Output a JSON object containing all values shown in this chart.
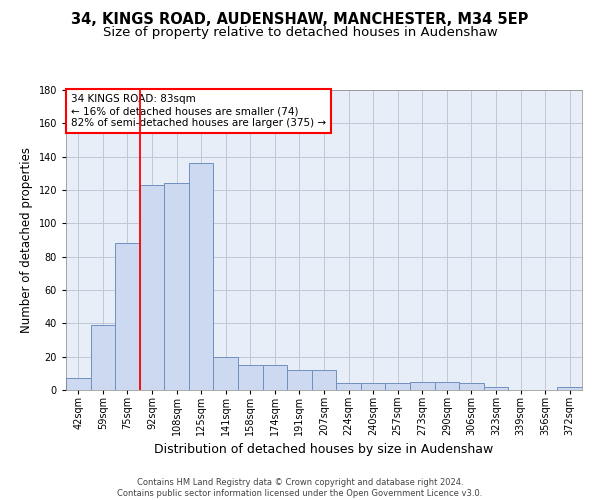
{
  "title": "34, KINGS ROAD, AUDENSHAW, MANCHESTER, M34 5EP",
  "subtitle": "Size of property relative to detached houses in Audenshaw",
  "xlabel": "Distribution of detached houses by size in Audenshaw",
  "ylabel": "Number of detached properties",
  "bar_values": [
    7,
    39,
    88,
    123,
    124,
    136,
    20,
    15,
    15,
    12,
    12,
    4,
    4,
    4,
    5,
    5,
    4,
    2,
    0,
    0,
    2
  ],
  "bar_labels": [
    "42sqm",
    "59sqm",
    "75sqm",
    "92sqm",
    "108sqm",
    "125sqm",
    "141sqm",
    "158sqm",
    "174sqm",
    "191sqm",
    "207sqm",
    "224sqm",
    "240sqm",
    "257sqm",
    "273sqm",
    "290sqm",
    "306sqm",
    "323sqm",
    "339sqm",
    "356sqm",
    "372sqm"
  ],
  "bar_color": "#ccd9f0",
  "bar_edge_color": "#7090c0",
  "bar_edge_width": 0.7,
  "grid_color": "#c0c8d8",
  "bg_color": "#e8eef8",
  "annotation_text": "34 KINGS ROAD: 83sqm\n← 16% of detached houses are smaller (74)\n82% of semi-detached houses are larger (375) →",
  "annotation_box_color": "white",
  "annotation_box_edge": "red",
  "red_line_x": 2.5,
  "ylim": [
    0,
    180
  ],
  "yticks": [
    0,
    20,
    40,
    60,
    80,
    100,
    120,
    140,
    160,
    180
  ],
  "footer_text": "Contains HM Land Registry data © Crown copyright and database right 2024.\nContains public sector information licensed under the Open Government Licence v3.0.",
  "title_fontsize": 10.5,
  "subtitle_fontsize": 9.5,
  "ylabel_fontsize": 8.5,
  "xlabel_fontsize": 9,
  "tick_fontsize": 7,
  "annotation_fontsize": 7.5,
  "footer_fontsize": 6
}
